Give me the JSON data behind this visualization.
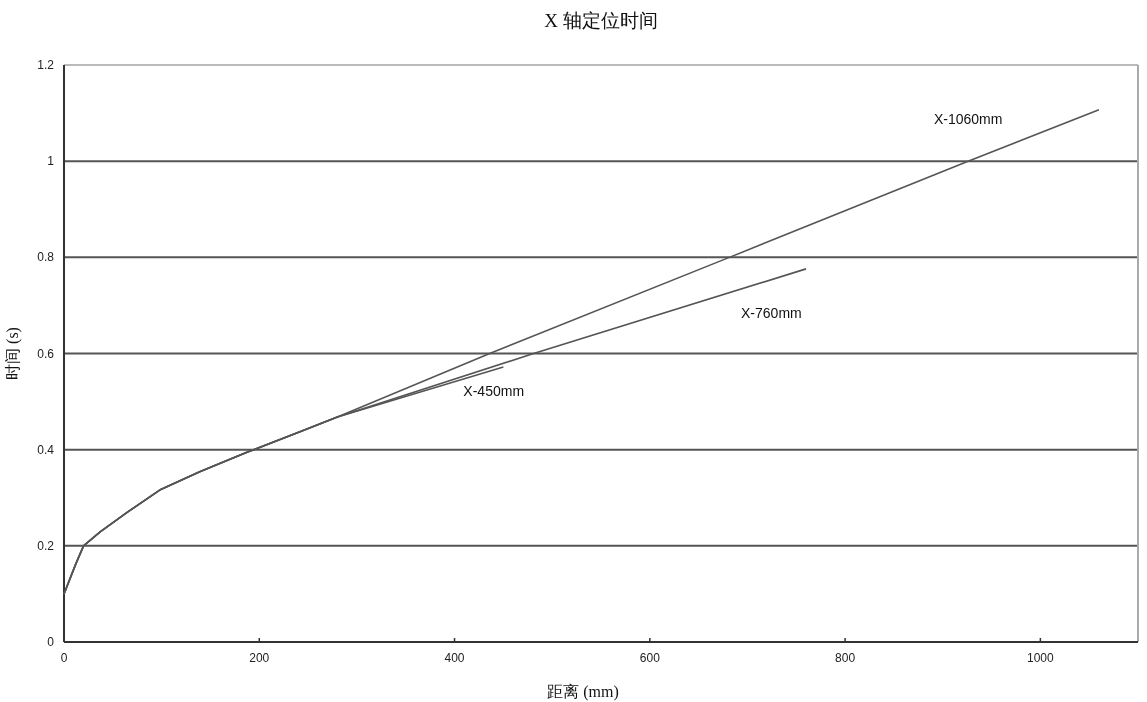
{
  "chart_data": {
    "type": "line",
    "title": "X 轴定位时间",
    "xlabel": "距离 (mm)",
    "ylabel": "时间 (s)",
    "xlim": [
      0,
      1100
    ],
    "xticks": [
      0,
      200,
      400,
      600,
      800,
      1000
    ],
    "ylim": [
      0,
      1.2
    ],
    "yticks": [
      0,
      0.2,
      0.4,
      0.6,
      0.8,
      1,
      1.2
    ],
    "grid": "y",
    "marker": "none",
    "line_style": "solid",
    "series": [
      {
        "name": "X-1060mm",
        "color": "#555555",
        "x": [
          0,
          12,
          20,
          37,
          65,
          98,
          139,
          188,
          241,
          280,
          436,
          684,
          926,
          1060
        ],
        "values": [
          0.1,
          0.162,
          0.2,
          0.229,
          0.27,
          0.316,
          0.354,
          0.395,
          0.437,
          0.468,
          0.6,
          0.802,
          1.0,
          1.107
        ]
      },
      {
        "name": "X-760mm",
        "color": "#555555",
        "x": [
          0,
          12,
          20,
          37,
          65,
          98,
          139,
          188,
          241,
          280,
          481,
          760
        ],
        "values": [
          0.1,
          0.162,
          0.2,
          0.229,
          0.27,
          0.316,
          0.354,
          0.395,
          0.437,
          0.468,
          0.6,
          0.776
        ]
      },
      {
        "name": "X-450mm",
        "color": "#555555",
        "x": [
          0,
          12,
          20,
          37,
          65,
          98,
          139,
          188,
          241,
          280,
          450
        ],
        "values": [
          0.1,
          0.162,
          0.2,
          0.229,
          0.27,
          0.316,
          0.354,
          0.395,
          0.437,
          0.468,
          0.572
        ]
      }
    ]
  }
}
